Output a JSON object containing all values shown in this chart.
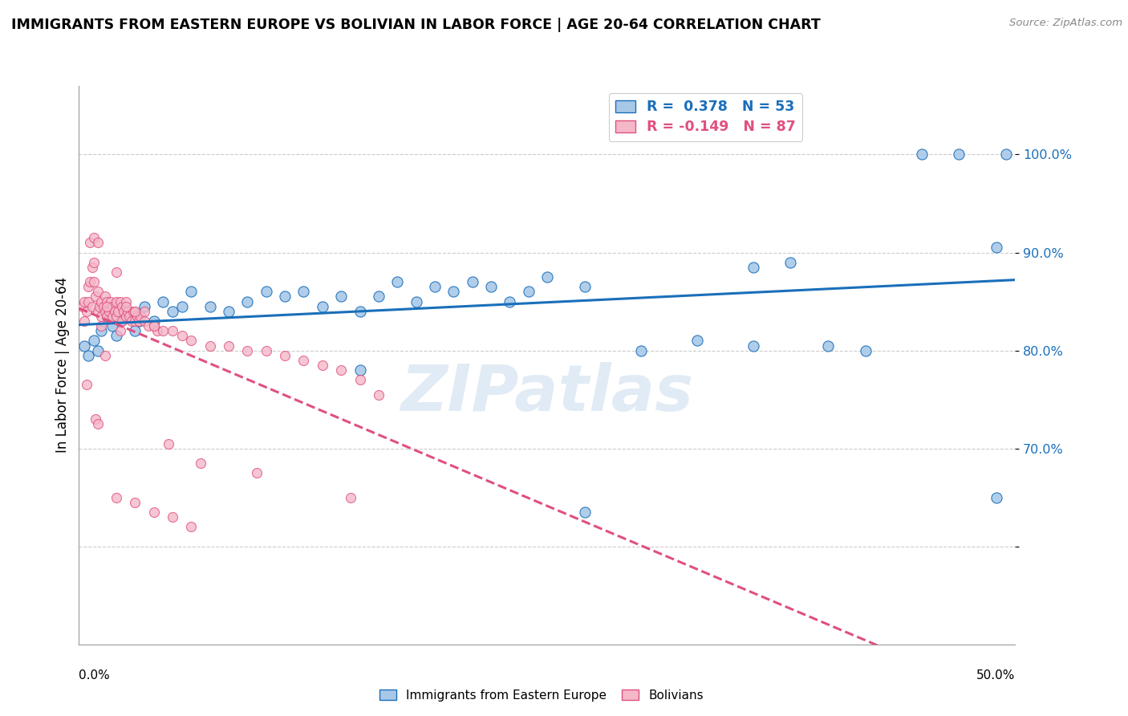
{
  "title": "IMMIGRANTS FROM EASTERN EUROPE VS BOLIVIAN IN LABOR FORCE | AGE 20-64 CORRELATION CHART",
  "source": "Source: ZipAtlas.com",
  "ylabel": "In Labor Force | Age 20-64",
  "xlim": [
    0.0,
    50.0
  ],
  "ylim": [
    50.0,
    107.0
  ],
  "color_blue": "#a8c8e8",
  "color_pink": "#f4b8c8",
  "color_blue_line": "#1a6fba",
  "color_pink_line": "#e05080",
  "watermark": "ZIPatlas",
  "blue_scatter_x": [
    0.3,
    0.5,
    0.8,
    1.0,
    1.2,
    1.5,
    1.8,
    2.0,
    2.2,
    2.5,
    2.8,
    3.0,
    3.2,
    3.5,
    4.0,
    4.5,
    5.0,
    5.5,
    6.0,
    7.0,
    8.0,
    9.0,
    10.0,
    11.0,
    12.0,
    13.0,
    14.0,
    15.0,
    16.0,
    17.0,
    18.0,
    19.0,
    20.0,
    21.0,
    22.0,
    23.0,
    24.0,
    25.0,
    27.0,
    30.0,
    33.0,
    36.0,
    38.0,
    40.0,
    42.0,
    45.0,
    47.0,
    49.0,
    49.5,
    36.0,
    49.0,
    27.0,
    15.0
  ],
  "blue_scatter_y": [
    80.5,
    79.5,
    81.0,
    80.0,
    82.0,
    83.5,
    82.5,
    81.5,
    83.0,
    84.0,
    83.5,
    82.0,
    83.0,
    84.5,
    83.0,
    85.0,
    84.0,
    84.5,
    86.0,
    84.5,
    84.0,
    85.0,
    86.0,
    85.5,
    86.0,
    84.5,
    85.5,
    84.0,
    85.5,
    87.0,
    85.0,
    86.5,
    86.0,
    87.0,
    86.5,
    85.0,
    86.0,
    87.5,
    86.5,
    80.0,
    81.0,
    88.5,
    89.0,
    80.5,
    80.0,
    100.0,
    100.0,
    90.5,
    100.0,
    80.5,
    65.0,
    63.5,
    78.0
  ],
  "pink_scatter_x": [
    0.2,
    0.3,
    0.3,
    0.4,
    0.5,
    0.5,
    0.6,
    0.7,
    0.7,
    0.8,
    0.8,
    0.9,
    1.0,
    1.0,
    1.1,
    1.2,
    1.2,
    1.3,
    1.4,
    1.4,
    1.5,
    1.5,
    1.6,
    1.7,
    1.8,
    1.8,
    1.9,
    2.0,
    2.0,
    2.1,
    2.2,
    2.3,
    2.3,
    2.4,
    2.5,
    2.5,
    2.6,
    2.7,
    2.8,
    2.9,
    3.0,
    3.0,
    3.1,
    3.2,
    3.3,
    3.5,
    3.7,
    4.0,
    4.2,
    4.5,
    5.0,
    5.5,
    6.0,
    7.0,
    8.0,
    9.0,
    10.0,
    11.0,
    12.0,
    13.0,
    14.0,
    15.0,
    0.6,
    0.8,
    1.0,
    1.5,
    2.0,
    2.5,
    3.0,
    4.0,
    0.4,
    1.2,
    2.2,
    0.9,
    1.4,
    3.5,
    4.8,
    6.5,
    9.5,
    14.5,
    1.0,
    2.0,
    3.0,
    4.0,
    5.0,
    6.0,
    16.0
  ],
  "pink_scatter_y": [
    84.5,
    85.0,
    83.0,
    84.0,
    86.5,
    85.0,
    87.0,
    88.5,
    84.5,
    89.0,
    87.0,
    85.5,
    86.0,
    84.0,
    84.5,
    85.0,
    83.5,
    84.5,
    85.5,
    84.0,
    85.0,
    83.5,
    84.0,
    85.0,
    84.5,
    83.5,
    84.0,
    85.0,
    83.5,
    84.0,
    85.0,
    84.5,
    83.0,
    84.0,
    83.5,
    85.0,
    84.0,
    83.5,
    83.0,
    84.0,
    84.0,
    83.0,
    83.5,
    83.0,
    83.5,
    83.0,
    82.5,
    82.5,
    82.0,
    82.0,
    82.0,
    81.5,
    81.0,
    80.5,
    80.5,
    80.0,
    80.0,
    79.5,
    79.0,
    78.5,
    78.0,
    77.0,
    91.0,
    91.5,
    91.0,
    84.5,
    88.0,
    84.5,
    84.0,
    82.5,
    76.5,
    82.5,
    82.0,
    73.0,
    79.5,
    84.0,
    70.5,
    68.5,
    67.5,
    65.0,
    72.5,
    65.0,
    64.5,
    63.5,
    63.0,
    62.0,
    75.5
  ]
}
